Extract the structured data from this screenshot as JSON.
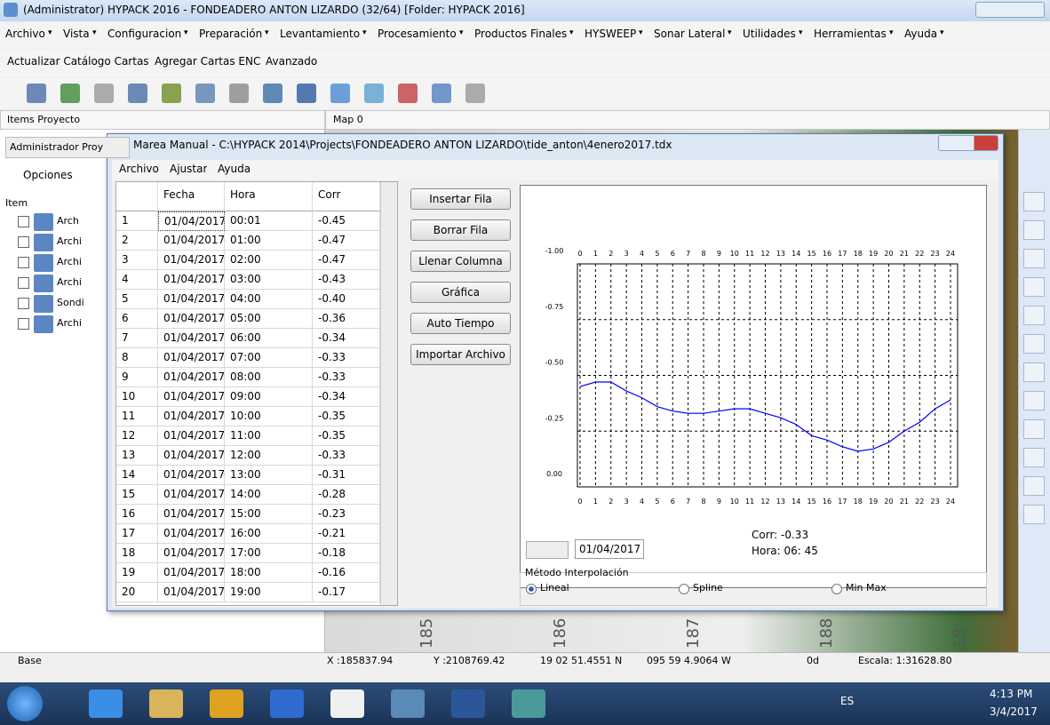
{
  "window": {
    "title": "(Administrator) HYPACK 2016 - FONDEADERO ANTON LIZARDO (32/64)  [Folder: HYPACK 2016]"
  },
  "menu": [
    "Archivo",
    "Vista",
    "Configuracion",
    "Preparación",
    "Levantamiento",
    "Procesamiento",
    "Productos Finales",
    "HYSWEEP",
    "Sonar Lateral",
    "Utilidades",
    "Herramientas",
    "Ayuda"
  ],
  "toolbar": [
    "Actualizar Catálogo Cartas",
    "Agregar Cartas ENC",
    "Avanzado"
  ],
  "left_panel": {
    "title": "Items Proyecto",
    "tab": "Administrador Proy",
    "options": "Opciones",
    "column": "Item",
    "items": [
      "Arch",
      "Archi",
      "Archi",
      "Archi",
      "Sondi",
      "Archi"
    ]
  },
  "map": {
    "title": "Map 0",
    "labels": [
      "185",
      "186",
      "187",
      "188",
      "18"
    ]
  },
  "status": [
    "Base",
    "X :185837.94",
    "Y :2108769.42",
    "19 02 51.4551 N",
    "095 59 4.9064 W",
    "0d",
    "Escala: 1:31628.80"
  ],
  "taskbar": {
    "language": "ES",
    "time": "4:13 PM",
    "date": "3/4/2017"
  },
  "dialog": {
    "title": "Marea Manual - C:\\HYPACK 2014\\Projects\\FONDEADERO ANTON LIZARDO\\tide_anton\\4enero2017.tdx",
    "menu": [
      "Archivo",
      "Ajustar",
      "Ayuda"
    ],
    "table": {
      "columns": [
        "Fecha",
        "Hora",
        "Corr"
      ],
      "rows": [
        [
          "1",
          "01/04/2017",
          "00:01",
          "-0.45"
        ],
        [
          "2",
          "01/04/2017",
          "01:00",
          "-0.47"
        ],
        [
          "3",
          "01/04/2017",
          "02:00",
          "-0.47"
        ],
        [
          "4",
          "01/04/2017",
          "03:00",
          "-0.43"
        ],
        [
          "5",
          "01/04/2017",
          "04:00",
          "-0.40"
        ],
        [
          "6",
          "01/04/2017",
          "05:00",
          "-0.36"
        ],
        [
          "7",
          "01/04/2017",
          "06:00",
          "-0.34"
        ],
        [
          "8",
          "01/04/2017",
          "07:00",
          "-0.33"
        ],
        [
          "9",
          "01/04/2017",
          "08:00",
          "-0.33"
        ],
        [
          "10",
          "01/04/2017",
          "09:00",
          "-0.34"
        ],
        [
          "11",
          "01/04/2017",
          "10:00",
          "-0.35"
        ],
        [
          "12",
          "01/04/2017",
          "11:00",
          "-0.35"
        ],
        [
          "13",
          "01/04/2017",
          "12:00",
          "-0.33"
        ],
        [
          "14",
          "01/04/2017",
          "13:00",
          "-0.31"
        ],
        [
          "15",
          "01/04/2017",
          "14:00",
          "-0.28"
        ],
        [
          "16",
          "01/04/2017",
          "15:00",
          "-0.23"
        ],
        [
          "17",
          "01/04/2017",
          "16:00",
          "-0.21"
        ],
        [
          "18",
          "01/04/2017",
          "17:00",
          "-0.18"
        ],
        [
          "19",
          "01/04/2017",
          "18:00",
          "-0.16"
        ],
        [
          "20",
          "01/04/2017",
          "19:00",
          "-0.17"
        ]
      ]
    },
    "buttons": [
      "Insertar Fila",
      "Borrar Fila",
      "Llenar Columna",
      "Gráfica",
      "Auto Tiempo",
      "Importar Archivo"
    ],
    "date_field": "01/04/2017",
    "readout": [
      "Corr: -0.33",
      "Hora: 06: 45"
    ],
    "interpolation": {
      "title": "Método Interpolación",
      "options": [
        "Lineal",
        "Spline",
        "Min Max"
      ]
    }
  },
  "chart_data": {
    "type": "line",
    "x": [
      0,
      1,
      2,
      3,
      4,
      5,
      6,
      7,
      8,
      9,
      10,
      11,
      12,
      13,
      14,
      15,
      16,
      17,
      18,
      19,
      20,
      21,
      22,
      23,
      24
    ],
    "xlim": [
      0,
      24
    ],
    "xticks": [
      0,
      1,
      2,
      3,
      4,
      5,
      6,
      7,
      8,
      9,
      10,
      11,
      12,
      13,
      14,
      15,
      16,
      17,
      18,
      19,
      20,
      21,
      22,
      23,
      24
    ],
    "ylim": [
      0,
      -1
    ],
    "yticks": [
      {
        "value": -1,
        "label": "-1.00"
      },
      {
        "value": -0.75,
        "label": "-0.75"
      },
      {
        "value": -0.5,
        "label": "-0.50"
      },
      {
        "value": -0.25,
        "label": "-0.25"
      },
      {
        "value": 0,
        "label": "0.00"
      }
    ],
    "grid": true,
    "series": [
      {
        "color": "#0000ff",
        "values": [
          -0.45,
          -0.47,
          -0.47,
          -0.43,
          -0.4,
          -0.36,
          -0.34,
          -0.33,
          -0.33,
          -0.34,
          -0.35,
          -0.35,
          -0.33,
          -0.31,
          -0.28,
          -0.23,
          -0.21,
          -0.18,
          -0.16,
          -0.17,
          -0.2,
          -0.25,
          -0.29,
          -0.35,
          -0.39
        ]
      }
    ]
  }
}
